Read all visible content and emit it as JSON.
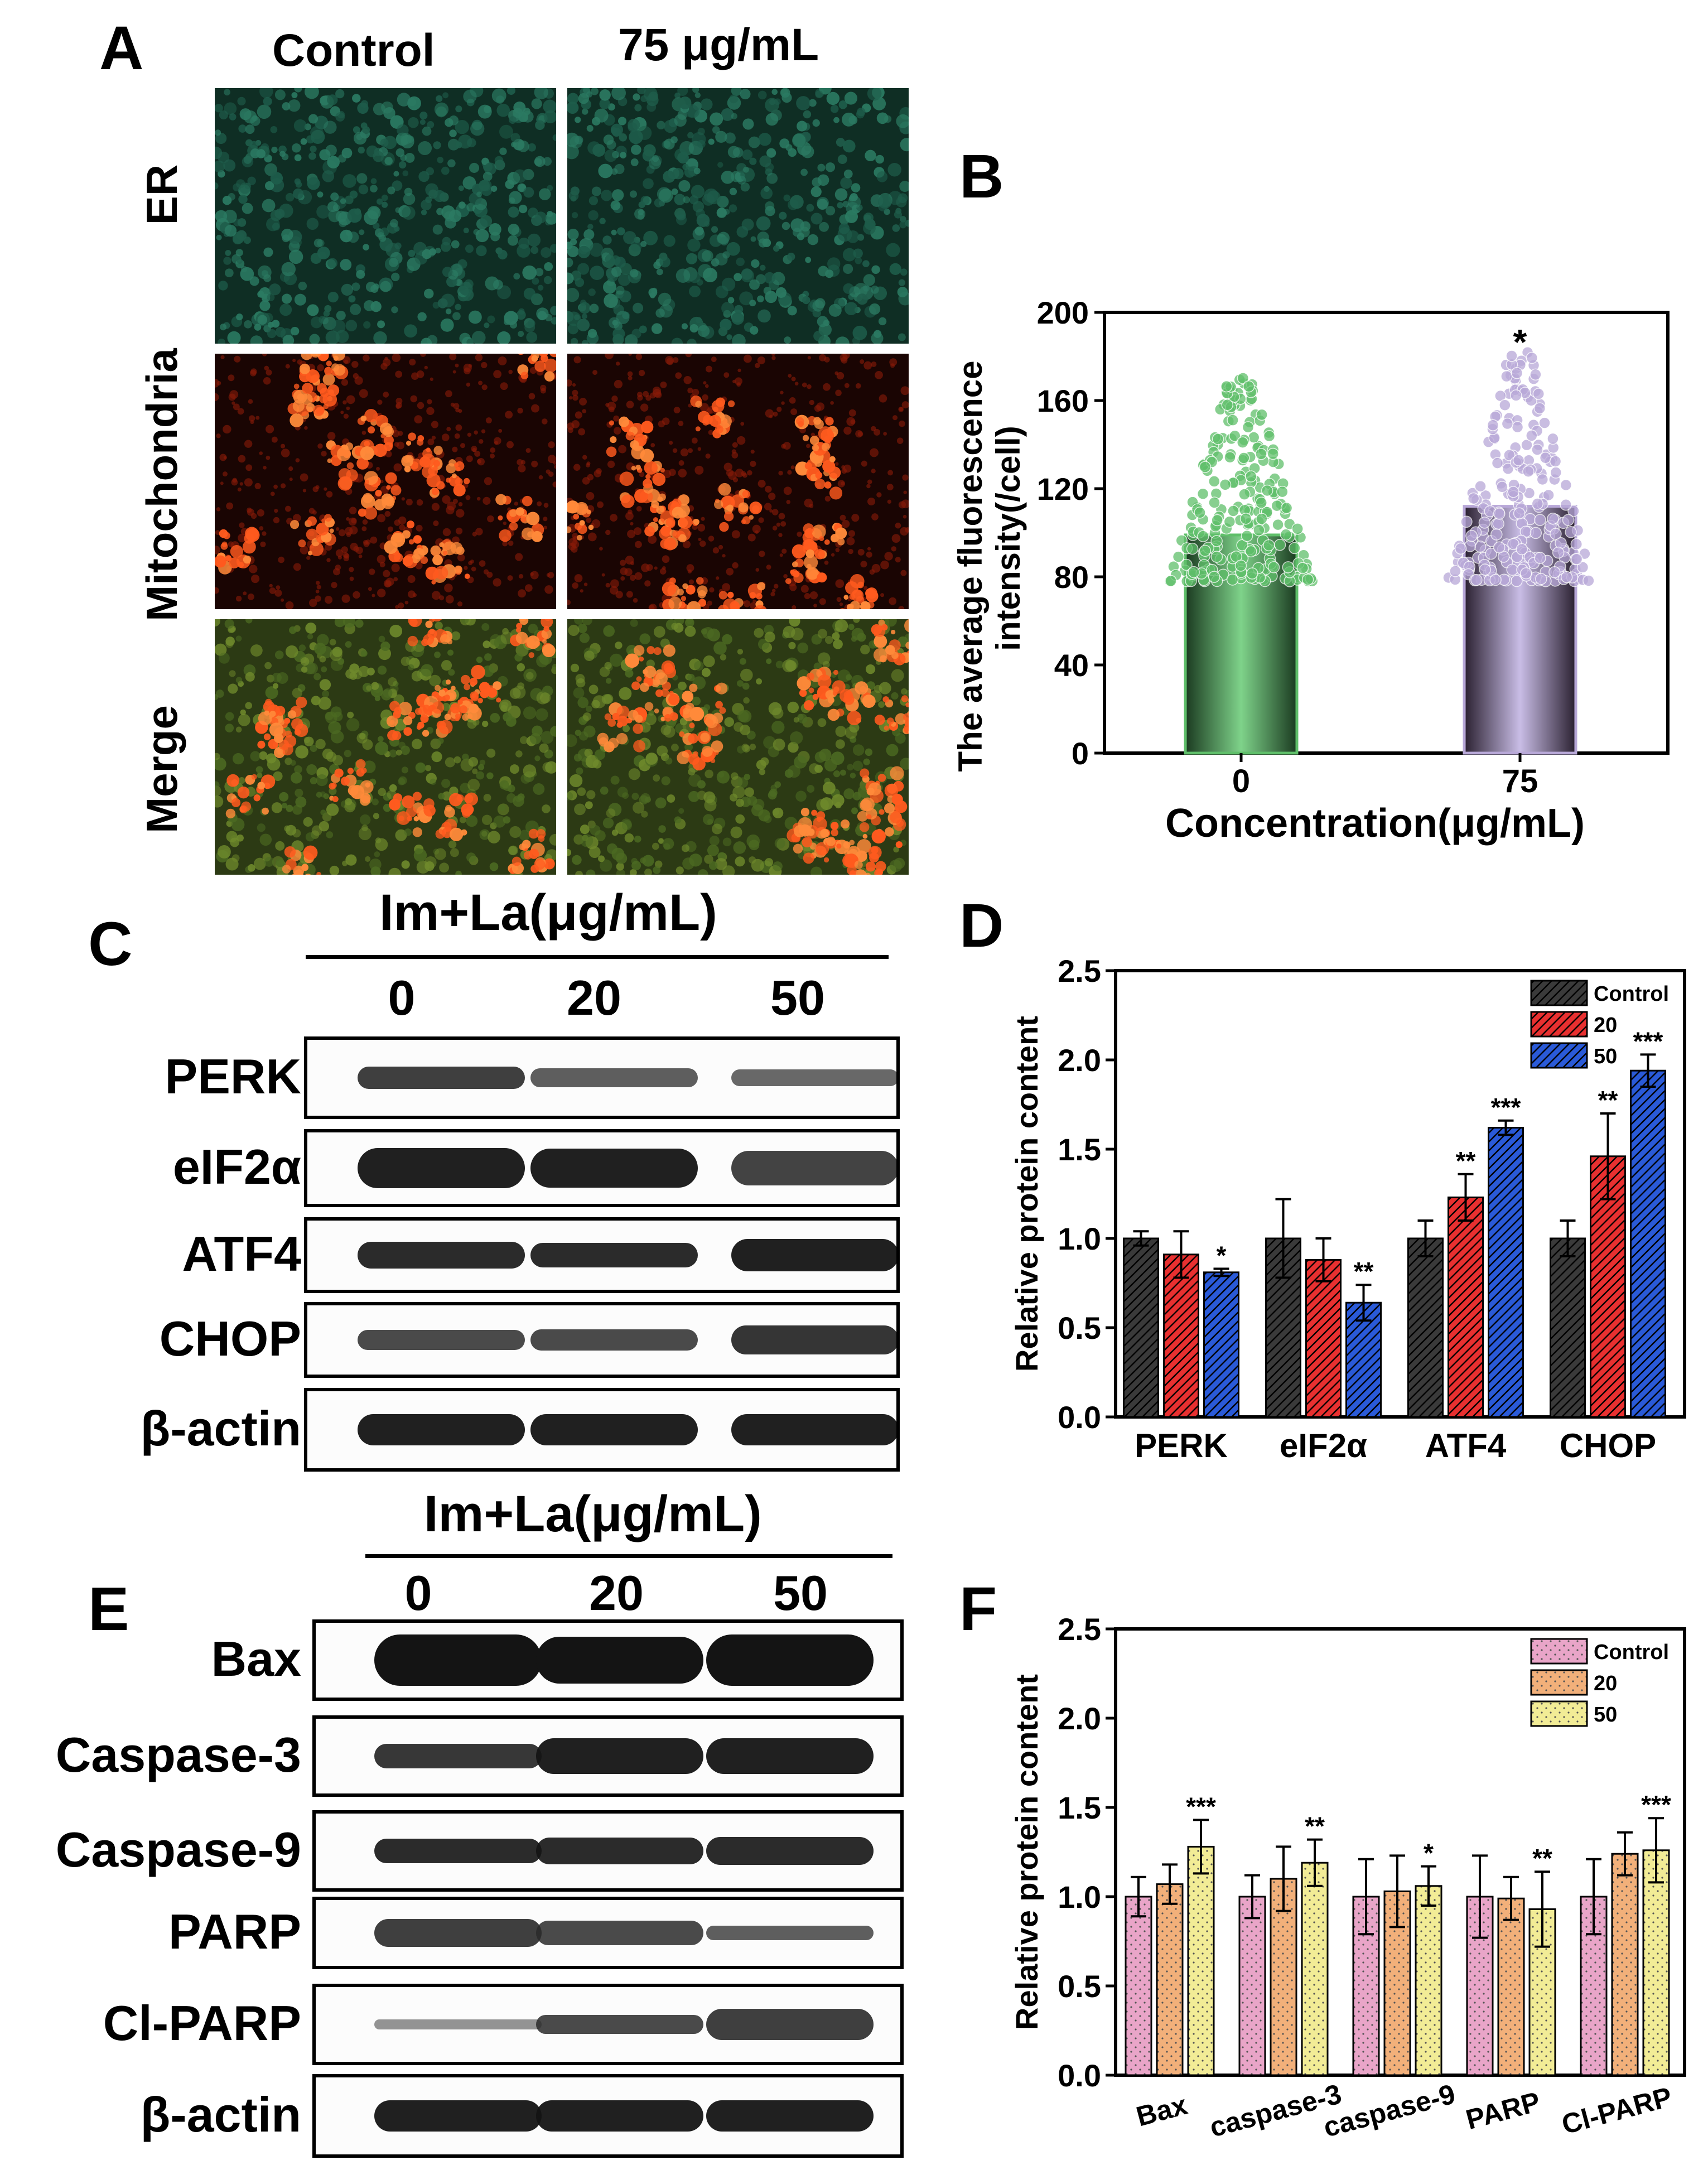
{
  "panels": {
    "A": "A",
    "B": "B",
    "C": "C",
    "D": "D",
    "E": "E",
    "F": "F"
  },
  "panel_a": {
    "columns": [
      "Control",
      "75 μg/mL"
    ],
    "rows": [
      "ER",
      "Mitochondria",
      "Merge"
    ],
    "colors": {
      "er": "#1f6f5a",
      "mito": "#ff4a14",
      "merge_bg": "#3f5a20",
      "bg": "#0c1a12"
    }
  },
  "panel_c": {
    "header": "Im+La(μg/mL)",
    "lanes": [
      "0",
      "20",
      "50"
    ],
    "proteins": [
      "PERK",
      "eIF2α",
      "ATF4",
      "CHOP",
      "β-actin"
    ]
  },
  "panel_e": {
    "header": "Im+La(μg/mL)",
    "lanes": [
      "0",
      "20",
      "50"
    ],
    "proteins": [
      "Bax",
      "Caspase-3",
      "Caspase-9",
      "PARP",
      "Cl-PARP",
      "β-actin"
    ]
  },
  "chart_data": [
    {
      "panel": "B",
      "type": "bar",
      "categories": [
        "0",
        "75"
      ],
      "values": [
        99,
        112
      ],
      "colors": [
        "#5fbf6a",
        "#b8a8d8"
      ],
      "scatter_range": [
        [
          78,
          172
        ],
        [
          78,
          182
        ]
      ],
      "significance": [
        "",
        "*"
      ],
      "xlabel": "Concentration(μg/mL)",
      "ylabel_lines": [
        "The average fluorescence",
        "intensity(/cell)"
      ],
      "yticks": [
        0,
        40,
        80,
        120,
        160,
        200
      ],
      "ylim": [
        0,
        200
      ]
    },
    {
      "panel": "D",
      "type": "bar",
      "categories": [
        "PERK",
        "eIF2α",
        "ATF4",
        "CHOP"
      ],
      "series": [
        {
          "name": "Control",
          "color": "#3a3a3a",
          "values": [
            1.0,
            1.0,
            1.0,
            1.0
          ],
          "errors": [
            0.04,
            0.22,
            0.1,
            0.1
          ],
          "sig": [
            "",
            "",
            "",
            ""
          ]
        },
        {
          "name": "20",
          "color": "#e83030",
          "values": [
            0.91,
            0.88,
            1.23,
            1.46
          ],
          "errors": [
            0.13,
            0.12,
            0.13,
            0.24
          ],
          "sig": [
            "",
            "",
            "**",
            "**"
          ]
        },
        {
          "name": "50",
          "color": "#2a5ad8",
          "values": [
            0.81,
            0.64,
            1.62,
            1.94
          ],
          "errors": [
            0.02,
            0.1,
            0.04,
            0.09
          ],
          "sig": [
            "*",
            "**",
            "***",
            "***"
          ]
        }
      ],
      "ylabel": "Relative protein content",
      "yticks": [
        "0.0",
        "0.5",
        "1.0",
        "1.5",
        "2.0",
        "2.5"
      ],
      "ylim": [
        0,
        2.5
      ],
      "legend": "top-right"
    },
    {
      "panel": "F",
      "type": "bar",
      "categories": [
        "Bax",
        "caspase-3",
        "caspase-9",
        "PARP",
        "Cl-PARP"
      ],
      "series": [
        {
          "name": "Control",
          "color": "#e9a5c8",
          "values": [
            1.0,
            1.0,
            1.0,
            1.0,
            1.0
          ],
          "errors": [
            0.11,
            0.12,
            0.21,
            0.23,
            0.21
          ],
          "sig": [
            "",
            "",
            "",
            "",
            ""
          ]
        },
        {
          "name": "20",
          "color": "#f2b07a",
          "values": [
            1.07,
            1.1,
            1.03,
            0.99,
            1.24
          ],
          "errors": [
            0.11,
            0.18,
            0.2,
            0.12,
            0.12
          ],
          "sig": [
            "",
            "",
            "",
            "",
            ""
          ]
        },
        {
          "name": "50",
          "color": "#f2ec96",
          "values": [
            1.28,
            1.19,
            1.06,
            0.93,
            1.26
          ],
          "errors": [
            0.15,
            0.13,
            0.11,
            0.21,
            0.18
          ],
          "sig": [
            "***",
            "**",
            "*",
            "**",
            "***"
          ]
        }
      ],
      "ylabel": "Relative protein content",
      "yticks": [
        "0.0",
        "0.5",
        "1.0",
        "1.5",
        "2.0",
        "2.5"
      ],
      "ylim": [
        0,
        2.5
      ],
      "legend": "top-right"
    }
  ]
}
